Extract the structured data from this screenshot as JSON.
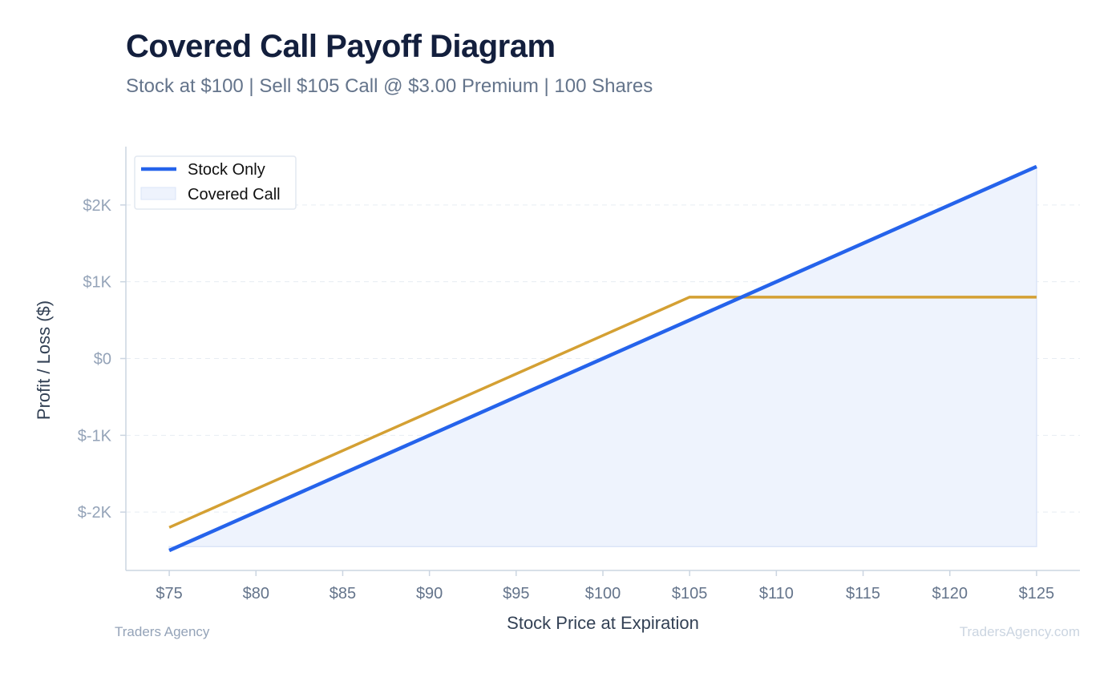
{
  "header": {
    "title": "Covered Call Payoff Diagram",
    "subtitle": "Stock at $100 | Sell $105 Call @ $3.00 Premium | 100 Shares"
  },
  "footer": {
    "left": "Traders Agency",
    "right": "TradersAgency.com"
  },
  "chart_data": {
    "type": "line",
    "title": "Covered Call Payoff Diagram",
    "subtitle": "Stock at $100 | Sell $105 Call @ $3.00 Premium | 100 Shares",
    "xlabel": "Stock Price at Expiration",
    "ylabel": "Profit / Loss ($)",
    "xlim": [
      72.5,
      127.5
    ],
    "ylim": [
      -2760,
      2760
    ],
    "x_ticks": [
      75,
      80,
      85,
      90,
      95,
      100,
      105,
      110,
      115,
      120,
      125
    ],
    "x_tick_labels": [
      "$75",
      "$80",
      "$85",
      "$90",
      "$95",
      "$100",
      "$105",
      "$110",
      "$115",
      "$120",
      "$125"
    ],
    "y_ticks": [
      -2000,
      -1000,
      0,
      1000,
      2000
    ],
    "y_tick_labels": [
      "$-2K",
      "$-1K",
      "$0",
      "$1K",
      "$2K"
    ],
    "grid": true,
    "legend_position": "top-left",
    "series": [
      {
        "name": "Stock Only",
        "color": "#2563eb",
        "x": [
          75,
          125
        ],
        "values": [
          -2500,
          2500
        ]
      },
      {
        "name": "",
        "color": "#d4a033",
        "x": [
          75,
          105,
          125
        ],
        "values": [
          -2200,
          800,
          800
        ]
      }
    ],
    "area": {
      "name": "Covered Call",
      "fill": "#eef3fd",
      "stroke": "#dbe5f8",
      "x": [
        75,
        125
      ],
      "upper": [
        -2500,
        2500
      ],
      "baseline": -2450
    },
    "colors": {
      "axis": "#cbd5e1",
      "grid": "#e8edf3",
      "tick_label_x": "#64748b",
      "tick_label_y": "#94a3b8"
    }
  }
}
